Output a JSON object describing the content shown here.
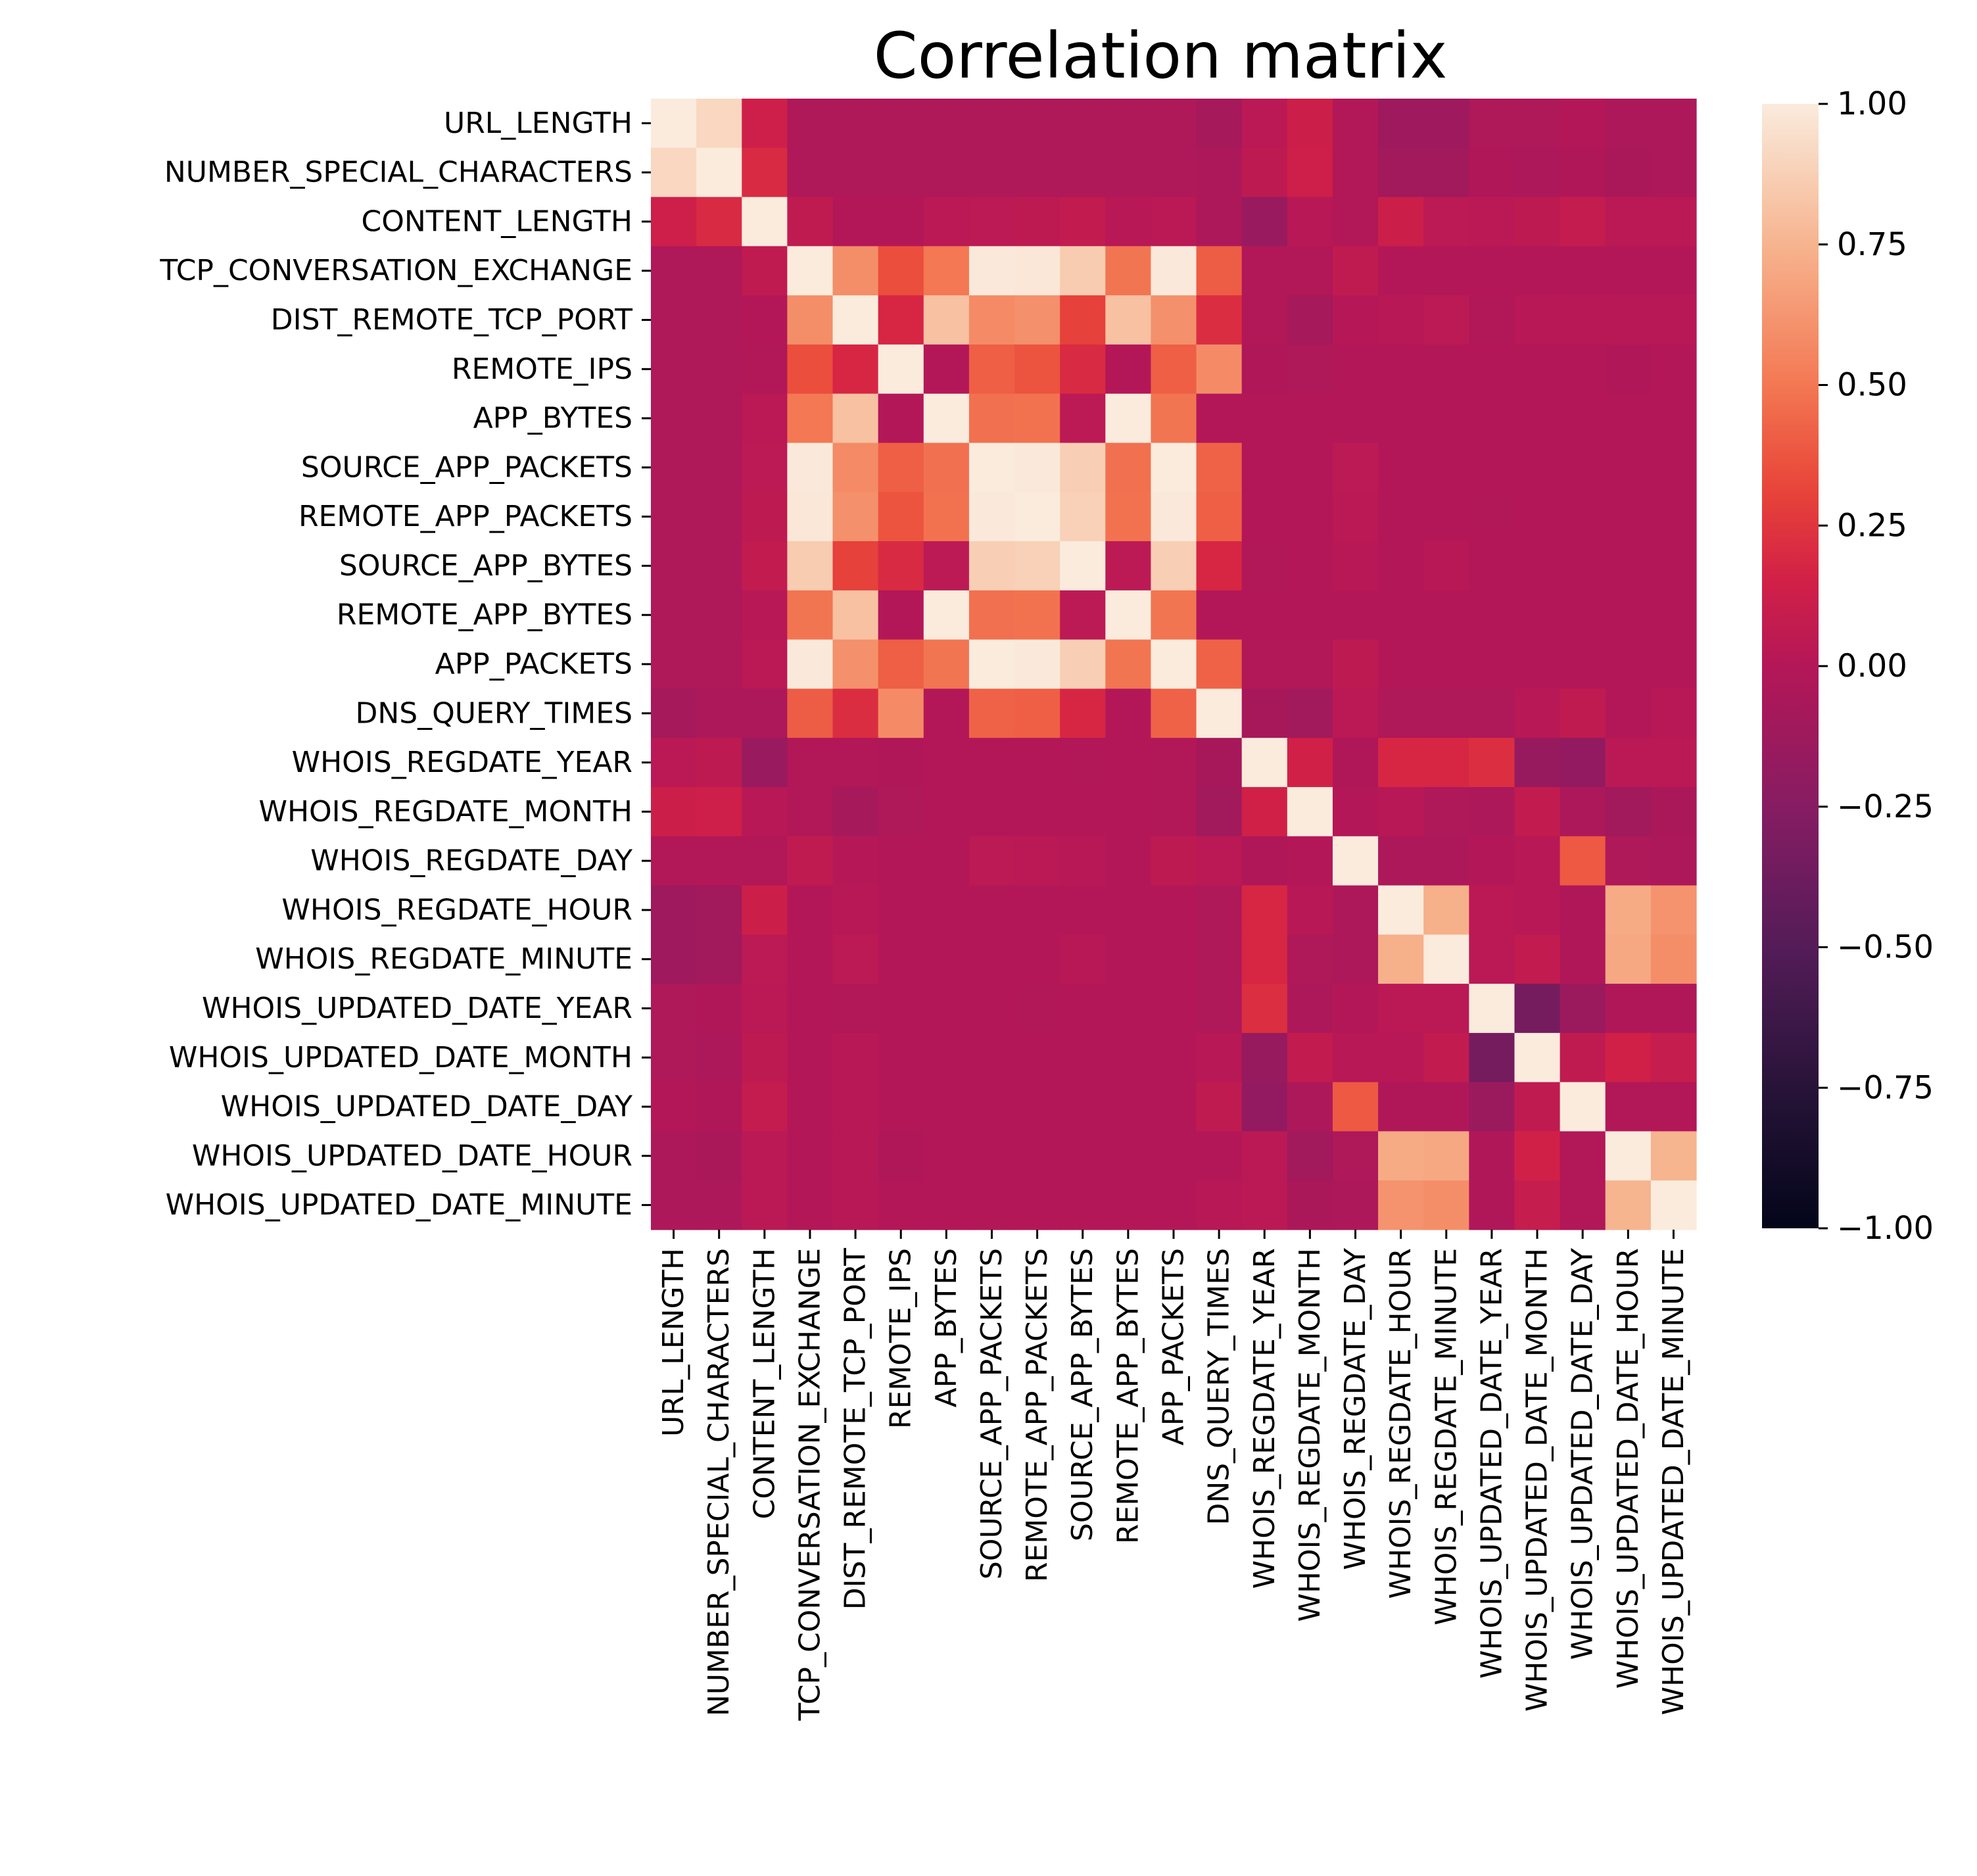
{
  "chart_data": {
    "type": "heatmap",
    "title": "Correlation matrix",
    "labels": [
      "URL_LENGTH",
      "NUMBER_SPECIAL_CHARACTERS",
      "CONTENT_LENGTH",
      "TCP_CONVERSATION_EXCHANGE",
      "DIST_REMOTE_TCP_PORT",
      "REMOTE_IPS",
      "APP_BYTES",
      "SOURCE_APP_PACKETS",
      "REMOTE_APP_PACKETS",
      "SOURCE_APP_BYTES",
      "REMOTE_APP_BYTES",
      "APP_PACKETS",
      "DNS_QUERY_TIMES",
      "WHOIS_REGDATE_YEAR",
      "WHOIS_REGDATE_MONTH",
      "WHOIS_REGDATE_DAY",
      "WHOIS_REGDATE_HOUR",
      "WHOIS_REGDATE_MINUTE",
      "WHOIS_UPDATED_DATE_YEAR",
      "WHOIS_UPDATED_DATE_MONTH",
      "WHOIS_UPDATED_DATE_DAY",
      "WHOIS_UPDATED_DATE_HOUR",
      "WHOIS_UPDATED_DATE_MINUTE"
    ],
    "matrix": [
      [
        1.0,
        0.91,
        0.13,
        -0.03,
        -0.03,
        -0.03,
        -0.03,
        -0.03,
        -0.03,
        -0.03,
        -0.03,
        -0.03,
        -0.08,
        0.03,
        0.12,
        -0.01,
        -0.12,
        -0.12,
        -0.03,
        -0.03,
        0.0,
        -0.04,
        -0.04
      ],
      [
        0.91,
        1.0,
        0.2,
        -0.03,
        -0.03,
        -0.03,
        -0.03,
        -0.03,
        -0.03,
        -0.03,
        -0.03,
        -0.03,
        -0.04,
        0.05,
        0.13,
        -0.01,
        -0.1,
        -0.1,
        -0.02,
        -0.04,
        -0.02,
        -0.05,
        -0.04
      ],
      [
        0.13,
        0.2,
        1.0,
        0.06,
        0.0,
        0.0,
        0.03,
        0.04,
        0.05,
        0.07,
        0.02,
        0.03,
        -0.04,
        -0.15,
        0.02,
        -0.01,
        0.12,
        0.04,
        0.03,
        0.05,
        0.08,
        0.03,
        0.03
      ],
      [
        -0.03,
        -0.03,
        0.06,
        1.0,
        0.59,
        0.35,
        0.5,
        0.99,
        0.98,
        0.86,
        0.49,
        0.99,
        0.4,
        -0.01,
        -0.01,
        0.06,
        0.0,
        0.0,
        0.0,
        0.0,
        0.0,
        0.0,
        0.0
      ],
      [
        -0.03,
        -0.03,
        0.0,
        0.59,
        1.0,
        0.18,
        0.81,
        0.58,
        0.6,
        0.3,
        0.81,
        0.6,
        0.21,
        -0.01,
        -0.08,
        0.01,
        0.02,
        0.04,
        -0.01,
        0.02,
        0.02,
        0.02,
        0.02
      ],
      [
        -0.03,
        -0.03,
        -0.01,
        0.35,
        0.18,
        1.0,
        0.0,
        0.41,
        0.37,
        0.2,
        0.0,
        0.41,
        0.58,
        -0.02,
        -0.03,
        0.0,
        0.0,
        0.0,
        0.0,
        0.0,
        0.0,
        -0.02,
        0.0
      ],
      [
        -0.03,
        -0.03,
        0.03,
        0.5,
        0.81,
        0.0,
        1.0,
        0.47,
        0.48,
        0.04,
        1.0,
        0.49,
        0.0,
        0.0,
        0.0,
        0.0,
        0.0,
        0.0,
        0.0,
        0.0,
        0.0,
        0.0,
        0.0
      ],
      [
        -0.03,
        -0.03,
        0.04,
        0.99,
        0.58,
        0.41,
        0.47,
        1.0,
        0.99,
        0.87,
        0.47,
        1.0,
        0.42,
        0.0,
        0.0,
        0.04,
        0.0,
        0.0,
        0.0,
        0.0,
        0.0,
        0.0,
        0.0
      ],
      [
        -0.03,
        -0.03,
        0.05,
        0.98,
        0.6,
        0.37,
        0.48,
        0.99,
        1.0,
        0.88,
        0.48,
        0.99,
        0.41,
        0.0,
        0.0,
        0.03,
        0.0,
        0.0,
        -0.01,
        0.0,
        0.0,
        0.0,
        0.0
      ],
      [
        -0.03,
        -0.03,
        0.07,
        0.86,
        0.3,
        0.2,
        0.04,
        0.87,
        0.88,
        1.0,
        0.04,
        0.87,
        0.18,
        -0.01,
        0.0,
        0.02,
        0.0,
        0.02,
        0.0,
        0.0,
        0.0,
        0.0,
        0.0
      ],
      [
        -0.03,
        -0.03,
        0.02,
        0.49,
        0.81,
        0.0,
        1.0,
        0.47,
        0.48,
        0.04,
        1.0,
        0.49,
        0.0,
        0.0,
        0.0,
        0.0,
        0.0,
        0.0,
        0.0,
        0.0,
        0.0,
        0.0,
        0.0
      ],
      [
        -0.03,
        -0.03,
        0.03,
        0.99,
        0.6,
        0.41,
        0.49,
        1.0,
        0.99,
        0.87,
        0.49,
        1.0,
        0.42,
        -0.01,
        -0.01,
        0.05,
        0.0,
        0.0,
        0.0,
        0.0,
        0.0,
        0.0,
        0.0
      ],
      [
        -0.08,
        -0.04,
        -0.04,
        0.4,
        0.21,
        0.58,
        0.0,
        0.42,
        0.41,
        0.18,
        0.0,
        0.42,
        1.0,
        -0.07,
        -0.1,
        0.03,
        -0.03,
        -0.03,
        -0.03,
        0.02,
        0.06,
        0.0,
        0.02
      ],
      [
        0.03,
        0.05,
        -0.15,
        -0.01,
        -0.01,
        -0.02,
        0.0,
        0.0,
        0.0,
        -0.01,
        0.0,
        -0.01,
        -0.07,
        1.0,
        0.15,
        -0.02,
        0.18,
        0.18,
        0.22,
        -0.16,
        -0.18,
        0.03,
        0.03
      ],
      [
        0.12,
        0.13,
        0.02,
        -0.01,
        -0.08,
        -0.03,
        0.0,
        0.0,
        0.0,
        0.0,
        0.0,
        -0.01,
        -0.1,
        0.15,
        1.0,
        0.0,
        0.02,
        -0.03,
        -0.04,
        0.07,
        -0.04,
        -0.1,
        -0.05
      ],
      [
        -0.01,
        -0.01,
        -0.01,
        0.06,
        0.01,
        0.0,
        0.0,
        0.04,
        0.03,
        0.02,
        0.0,
        0.05,
        0.03,
        -0.02,
        0.0,
        1.0,
        -0.04,
        -0.04,
        0.0,
        0.02,
        0.39,
        -0.03,
        -0.04
      ],
      [
        -0.12,
        -0.1,
        0.12,
        0.0,
        0.02,
        0.0,
        0.0,
        0.0,
        0.0,
        0.0,
        0.0,
        0.0,
        -0.03,
        0.18,
        0.02,
        -0.04,
        1.0,
        0.73,
        0.03,
        0.02,
        -0.02,
        0.71,
        0.61
      ],
      [
        -0.12,
        -0.1,
        0.04,
        0.0,
        0.04,
        0.0,
        0.0,
        0.0,
        0.0,
        0.02,
        0.0,
        0.0,
        -0.03,
        0.18,
        -0.03,
        -0.04,
        0.73,
        1.0,
        0.03,
        0.07,
        -0.02,
        0.7,
        0.59
      ],
      [
        -0.03,
        -0.02,
        0.03,
        0.0,
        -0.01,
        0.0,
        0.0,
        0.0,
        -0.01,
        0.0,
        0.0,
        0.0,
        -0.03,
        0.22,
        -0.04,
        0.0,
        0.03,
        0.03,
        1.0,
        -0.34,
        -0.14,
        -0.02,
        -0.02
      ],
      [
        -0.03,
        -0.04,
        0.05,
        0.0,
        0.02,
        0.0,
        0.0,
        0.0,
        0.0,
        0.0,
        0.0,
        0.0,
        0.02,
        -0.16,
        0.07,
        0.02,
        0.02,
        0.07,
        -0.34,
        1.0,
        0.06,
        0.15,
        0.09
      ],
      [
        0.0,
        -0.02,
        0.08,
        0.0,
        0.02,
        0.0,
        0.0,
        0.0,
        0.0,
        0.0,
        0.0,
        0.0,
        0.06,
        -0.18,
        -0.04,
        0.39,
        -0.02,
        -0.02,
        -0.14,
        0.06,
        1.0,
        -0.01,
        -0.01
      ],
      [
        -0.04,
        -0.05,
        0.03,
        0.0,
        0.02,
        -0.02,
        0.0,
        0.0,
        0.0,
        0.0,
        0.0,
        0.0,
        0.0,
        0.03,
        -0.1,
        -0.03,
        0.71,
        0.7,
        -0.02,
        0.15,
        -0.01,
        1.0,
        0.75
      ],
      [
        -0.04,
        -0.04,
        0.03,
        0.0,
        0.02,
        0.0,
        0.0,
        0.0,
        0.0,
        0.0,
        0.0,
        0.0,
        0.02,
        0.03,
        -0.05,
        -0.04,
        0.61,
        0.59,
        -0.02,
        0.09,
        -0.01,
        0.75,
        1.0
      ]
    ],
    "colorbar": {
      "vmin": -1.0,
      "vmax": 1.0,
      "ticks": [
        1.0,
        0.75,
        0.5,
        0.25,
        0.0,
        -0.25,
        -0.5,
        -0.75,
        -1.0
      ],
      "tick_labels": [
        "1.00",
        "0.75",
        "0.50",
        "0.25",
        "0.00",
        "−0.25",
        "−0.50",
        "−0.75",
        "−1.00"
      ]
    },
    "colormap": "rocket",
    "grid": false,
    "legend": "colorbar-right"
  }
}
